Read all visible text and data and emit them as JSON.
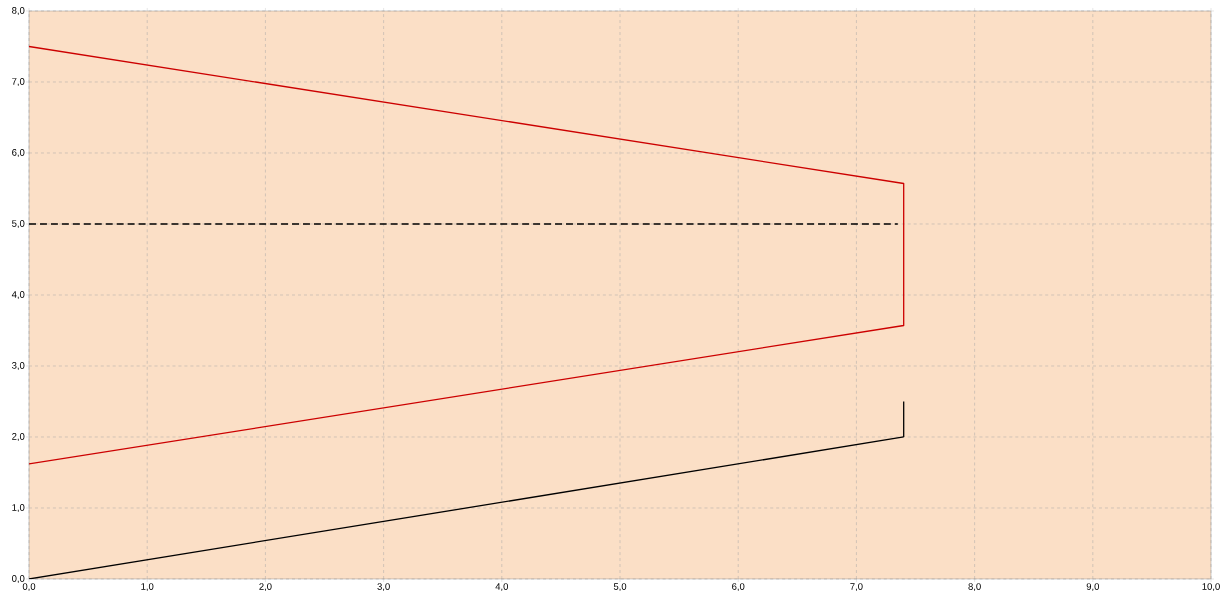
{
  "chart_data": {
    "type": "line",
    "xlim": [
      0,
      10
    ],
    "ylim": [
      0,
      8
    ],
    "xticks": [
      {
        "value": 0,
        "label": "0,0"
      },
      {
        "value": 1,
        "label": "1,0"
      },
      {
        "value": 2,
        "label": "2,0"
      },
      {
        "value": 3,
        "label": "3,0"
      },
      {
        "value": 4,
        "label": "4,0"
      },
      {
        "value": 5,
        "label": "5,0"
      },
      {
        "value": 6,
        "label": "6,0"
      },
      {
        "value": 7,
        "label": "7,0"
      },
      {
        "value": 8,
        "label": "8,0"
      },
      {
        "value": 9,
        "label": "9,0"
      },
      {
        "value": 10,
        "label": "10,0"
      }
    ],
    "yticks": [
      {
        "value": 0,
        "label": "0,0"
      },
      {
        "value": 1,
        "label": "1,0"
      },
      {
        "value": 2,
        "label": "2,0"
      },
      {
        "value": 3,
        "label": "3,0"
      },
      {
        "value": 4,
        "label": "4,0"
      },
      {
        "value": 5,
        "label": "5,0"
      },
      {
        "value": 6,
        "label": "6,0"
      },
      {
        "value": 7,
        "label": "7,0"
      },
      {
        "value": 8,
        "label": "8,0"
      }
    ],
    "grid": true,
    "marker": "none",
    "series": [
      {
        "color": "#cc0000",
        "x": [
          0,
          7.4,
          7.4,
          0
        ],
        "values": [
          7.5,
          5.57,
          3.57,
          1.62
        ]
      },
      {
        "color": "#000000",
        "line_style": "dashed",
        "x": [
          0,
          7.35
        ],
        "values": [
          5,
          5
        ]
      },
      {
        "color": "#000000",
        "x": [
          0,
          7.4
        ],
        "values": [
          0,
          2.0
        ]
      },
      {
        "color": "#000000",
        "x": [
          7.4,
          7.4
        ],
        "values": [
          2.0,
          2.5
        ]
      }
    ]
  }
}
